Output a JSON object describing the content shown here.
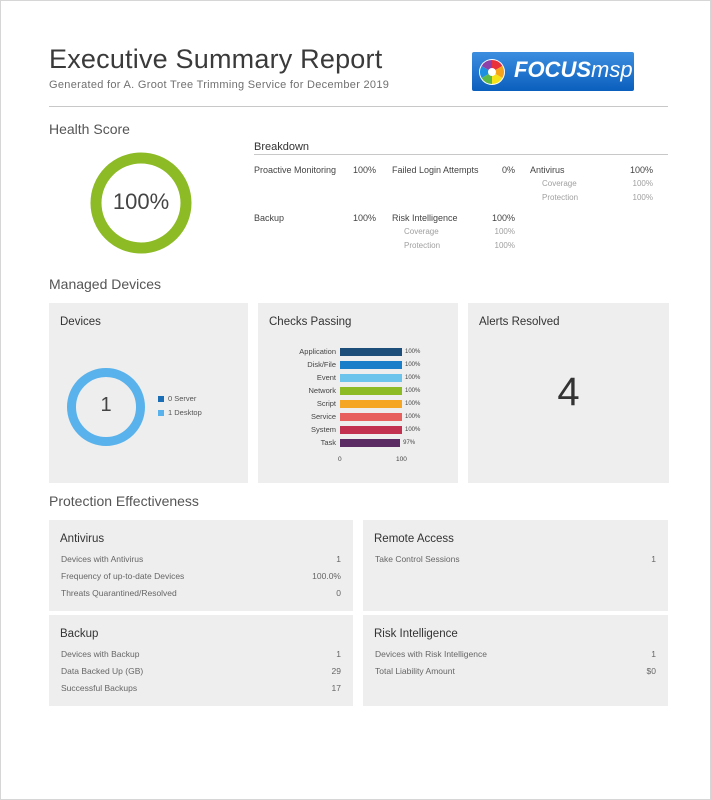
{
  "header": {
    "title": "Executive Summary Report",
    "subtitle": "Generated for A. Groot Tree Trimming Service for December 2019",
    "logo_text_bold": "FOCUS",
    "logo_text_light": "msp"
  },
  "health": {
    "section_title": "Health Score",
    "score_label": "100%",
    "score_value": 100,
    "ring_color": "#8cbb25",
    "breakdown": {
      "title": "Breakdown",
      "proactive_label": "Proactive Monitoring",
      "proactive_value": "100%",
      "failed_login_label": "Failed Login Attempts",
      "failed_login_value": "0%",
      "antivirus_label": "Antivirus",
      "antivirus_value": "100%",
      "antivirus_coverage_label": "Coverage",
      "antivirus_coverage_value": "100%",
      "antivirus_protection_label": "Protection",
      "antivirus_protection_value": "100%",
      "backup_label": "Backup",
      "backup_value": "100%",
      "risk_label": "Risk Intelligence",
      "risk_value": "100%",
      "risk_coverage_label": "Coverage",
      "risk_coverage_value": "100%",
      "risk_protection_label": "Protection",
      "risk_protection_value": "100%"
    }
  },
  "managed": {
    "section_title": "Managed Devices",
    "devices": {
      "title": "Devices",
      "total": "1",
      "legend_server": "0 Server",
      "legend_desktop": "1 Desktop",
      "server_color": "#1a6eb5",
      "desktop_color": "#5ab2ec"
    },
    "checks_title": "Checks Passing",
    "alerts": {
      "title": "Alerts Resolved",
      "value": "4"
    }
  },
  "chart_data": {
    "type": "bar",
    "orientation": "horizontal",
    "title": "Checks Passing",
    "categories": [
      "Application",
      "Disk/File",
      "Event",
      "Network",
      "Script",
      "Service",
      "System",
      "Task"
    ],
    "values": [
      100,
      100,
      100,
      100,
      100,
      100,
      100,
      97
    ],
    "value_labels": [
      "100%",
      "100%",
      "100%",
      "100%",
      "100%",
      "100%",
      "100%",
      "97%"
    ],
    "colors": [
      "#1d4e7a",
      "#1a7fc8",
      "#6cc4ec",
      "#8cbb25",
      "#f5a623",
      "#e8605e",
      "#c2314f",
      "#5b2b63"
    ],
    "xlim": [
      0,
      100
    ],
    "xticks": [
      "0",
      "100"
    ]
  },
  "protection": {
    "section_title": "Protection Effectiveness",
    "antivirus": {
      "title": "Antivirus",
      "rows": [
        {
          "label": "Devices with Antivirus",
          "value": "1"
        },
        {
          "label": "Frequency of up-to-date Devices",
          "value": "100.0%"
        },
        {
          "label": "Threats Quarantined/Resolved",
          "value": "0"
        }
      ]
    },
    "remote": {
      "title": "Remote Access",
      "rows": [
        {
          "label": "Take Control Sessions",
          "value": "1"
        }
      ]
    },
    "backup": {
      "title": "Backup",
      "rows": [
        {
          "label": "Devices with Backup",
          "value": "1"
        },
        {
          "label": "Data Backed Up (GB)",
          "value": "29"
        },
        {
          "label": "Successful Backups",
          "value": "17"
        }
      ]
    },
    "risk": {
      "title": "Risk Intelligence",
      "rows": [
        {
          "label": "Devices with Risk Intelligence",
          "value": "1"
        },
        {
          "label": "Total Liability Amount",
          "value": "$0"
        }
      ]
    }
  }
}
